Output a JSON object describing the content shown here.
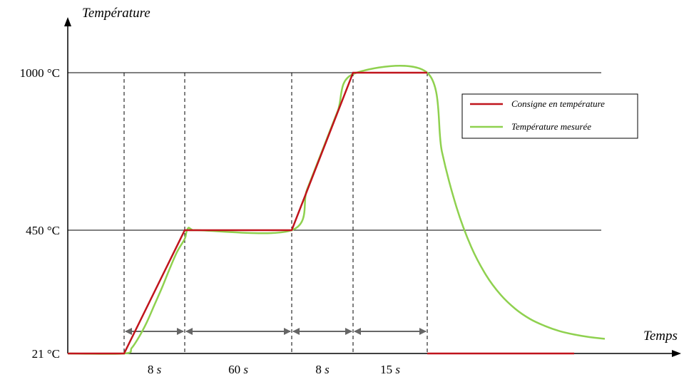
{
  "chart_data": {
    "type": "line",
    "title": "",
    "ylabel": "Température",
    "xlabel": "Temps",
    "y_ticks": [
      {
        "value": 21,
        "label": "21 °C"
      },
      {
        "value": 450,
        "label": "450 °C"
      },
      {
        "value": 1000,
        "label": "1000 °C"
      }
    ],
    "phase_boundaries": [
      0,
      8,
      68,
      76,
      91
    ],
    "durations": [
      {
        "from": 0,
        "to": 8,
        "label": "8 s"
      },
      {
        "from": 8,
        "to": 68,
        "label": "60 s"
      },
      {
        "from": 68,
        "to": 76,
        "label": "8 s"
      },
      {
        "from": 76,
        "to": 91,
        "label": "15 s"
      }
    ],
    "series": [
      {
        "name": "Consigne en température",
        "color": "#c0141c",
        "points": [
          [
            -8,
            21
          ],
          [
            0,
            21
          ],
          [
            8,
            450
          ],
          [
            68,
            450
          ],
          [
            76,
            1000
          ],
          [
            91,
            1000
          ]
        ],
        "after_stop": [
          [
            91,
            21
          ],
          [
            111,
            21
          ]
        ]
      },
      {
        "name": "Température mesurée",
        "color": "#8fd14f",
        "points": [
          [
            -8,
            21
          ],
          [
            0,
            21
          ],
          [
            1,
            40
          ],
          [
            2,
            80
          ],
          [
            3,
            130
          ],
          [
            4,
            190
          ],
          [
            5,
            250
          ],
          [
            6,
            315
          ],
          [
            7,
            375
          ],
          [
            8,
            420
          ],
          [
            9,
            445
          ],
          [
            10,
            458
          ],
          [
            11,
            456
          ],
          [
            12,
            452
          ],
          [
            15,
            450
          ],
          [
            68,
            450
          ],
          [
            70,
            592
          ],
          [
            72,
            729
          ],
          [
            74,
            866
          ],
          [
            76,
            995
          ],
          [
            91,
            1000
          ],
          [
            93,
            724
          ],
          [
            95,
            529
          ],
          [
            97,
            391
          ],
          [
            99,
            294
          ],
          [
            101,
            225
          ],
          [
            103,
            176
          ],
          [
            105,
            141
          ],
          [
            107,
            117
          ],
          [
            109,
            99
          ],
          [
            111,
            87
          ],
          [
            113,
            78
          ],
          [
            115,
            72
          ]
        ]
      }
    ],
    "legend": "top-right"
  },
  "colors": {
    "axis": "#000000",
    "gridline": "#000000",
    "arrow": "#666666"
  }
}
